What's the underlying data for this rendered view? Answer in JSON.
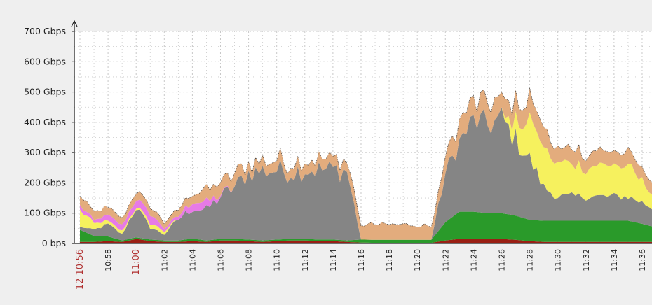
{
  "colors": {
    "background": "#efefef",
    "plot_background": "#ffffff",
    "grid": "#c8c8c8",
    "axis": "#222222",
    "gray": "#858585",
    "green": "#2a9a2a",
    "tan": "#e3ac7d",
    "yellow": "#f6f15e",
    "magenta": "#e77ae6",
    "darkred": "#9a1f14",
    "highlight_label": "#b03030"
  },
  "chart_data": {
    "type": "area",
    "stacked": true,
    "title": "",
    "xlabel": "",
    "ylabel": "",
    "ylim": [
      0,
      700
    ],
    "y_unit": "Gbps",
    "y_ticks": [
      {
        "value": 0,
        "label": "0 bps"
      },
      {
        "value": 100,
        "label": "100 Gbps"
      },
      {
        "value": 200,
        "label": "200 Gbps"
      },
      {
        "value": 300,
        "label": "300 Gbps"
      },
      {
        "value": 400,
        "label": "400 Gbps"
      },
      {
        "value": 500,
        "label": "500 Gbps"
      },
      {
        "value": 600,
        "label": "600 Gbps"
      },
      {
        "value": 700,
        "label": "700 Gbps"
      }
    ],
    "x_ticks": [
      {
        "minute": 0,
        "label": "12 10:56",
        "highlight": true
      },
      {
        "minute": 2,
        "label": "10:58",
        "highlight": false
      },
      {
        "minute": 4,
        "label": "11:00",
        "highlight": true
      },
      {
        "minute": 6,
        "label": "11:02",
        "highlight": false
      },
      {
        "minute": 8,
        "label": "11:04",
        "highlight": false
      },
      {
        "minute": 10,
        "label": "11:06",
        "highlight": false
      },
      {
        "minute": 12,
        "label": "11:08",
        "highlight": false
      },
      {
        "minute": 14,
        "label": "11:10",
        "highlight": false
      },
      {
        "minute": 16,
        "label": "11:12",
        "highlight": false
      },
      {
        "minute": 18,
        "label": "11:14",
        "highlight": false
      },
      {
        "minute": 20,
        "label": "11:16",
        "highlight": false
      },
      {
        "minute": 22,
        "label": "11:18",
        "highlight": false
      },
      {
        "minute": 24,
        "label": "11:20",
        "highlight": false
      },
      {
        "minute": 26,
        "label": "11:22",
        "highlight": false
      },
      {
        "minute": 28,
        "label": "11:24",
        "highlight": false
      },
      {
        "minute": 30,
        "label": "11:26",
        "highlight": false
      },
      {
        "minute": 32,
        "label": "11:28",
        "highlight": false
      },
      {
        "minute": 34,
        "label": "11:30",
        "highlight": false
      },
      {
        "minute": 36,
        "label": "11:32",
        "highlight": false
      },
      {
        "minute": 38,
        "label": "11:34",
        "highlight": false
      },
      {
        "minute": 40,
        "label": "11:36",
        "highlight": false
      }
    ],
    "x_minute_range": [
      0,
      40.8
    ],
    "grid": true,
    "series": [
      {
        "color_key": "darkred",
        "x": [
          0,
          1,
          2,
          3,
          4,
          5,
          6,
          7,
          8,
          9,
          10,
          11,
          12,
          13,
          14,
          15,
          16,
          17,
          18,
          19,
          20,
          21,
          22,
          23,
          24,
          25,
          26,
          27,
          28,
          29,
          30,
          31,
          32,
          33,
          34,
          35,
          36,
          37,
          38,
          39,
          40,
          40.8
        ],
        "values": [
          5,
          5,
          8,
          5,
          15,
          8,
          5,
          5,
          8,
          5,
          10,
          10,
          8,
          5,
          8,
          10,
          10,
          8,
          8,
          5,
          3,
          2,
          2,
          2,
          2,
          2,
          10,
          15,
          15,
          15,
          15,
          12,
          8,
          5,
          5,
          5,
          5,
          5,
          5,
          5,
          5,
          5
        ]
      },
      {
        "color_key": "green",
        "x": [
          0,
          1,
          2,
          3,
          4,
          5,
          6,
          7,
          8,
          9,
          10,
          11,
          12,
          13,
          14,
          15,
          16,
          17,
          18,
          19,
          20,
          21,
          22,
          23,
          24,
          25,
          26,
          27,
          28,
          29,
          30,
          31,
          32,
          33,
          34,
          35,
          36,
          37,
          38,
          39,
          40,
          40.8
        ],
        "values": [
          40,
          20,
          15,
          5,
          5,
          5,
          5,
          5,
          8,
          5,
          5,
          5,
          5,
          5,
          5,
          5,
          5,
          5,
          5,
          5,
          10,
          10,
          10,
          10,
          10,
          10,
          60,
          90,
          90,
          85,
          85,
          80,
          70,
          70,
          70,
          70,
          70,
          70,
          70,
          70,
          60,
          50
        ]
      },
      {
        "color_key": "gray",
        "x": [
          0,
          1,
          2,
          3,
          4,
          5,
          6,
          7,
          8,
          9,
          10,
          11,
          12,
          13,
          14,
          15,
          16,
          17,
          18,
          19,
          20,
          21,
          22,
          23,
          24,
          25,
          26,
          27,
          28,
          29,
          30,
          31,
          32,
          33,
          34,
          35,
          36,
          37,
          38,
          39,
          40,
          40.8
        ],
        "values": [
          10,
          20,
          40,
          20,
          100,
          40,
          20,
          70,
          100,
          100,
          140,
          170,
          220,
          230,
          230,
          220,
          230,
          230,
          230,
          230,
          0,
          0,
          0,
          0,
          0,
          0,
          160,
          230,
          300,
          290,
          310,
          250,
          200,
          110,
          80,
          80,
          80,
          80,
          80,
          80,
          70,
          60
        ]
      },
      {
        "color_key": "yellow",
        "x": [
          0,
          1,
          2,
          3,
          4,
          5,
          6,
          7,
          8,
          9,
          10,
          11,
          12,
          13,
          14,
          15,
          16,
          17,
          18,
          19,
          20,
          21,
          22,
          23,
          24,
          25,
          26,
          27,
          28,
          29,
          30,
          31,
          32,
          33,
          34,
          35,
          36,
          37,
          38,
          39,
          40,
          40.8
        ],
        "values": [
          60,
          20,
          10,
          10,
          5,
          15,
          10,
          0,
          0,
          0,
          0,
          0,
          0,
          0,
          0,
          0,
          0,
          0,
          0,
          0,
          0,
          0,
          0,
          0,
          0,
          0,
          0,
          0,
          0,
          0,
          0,
          60,
          130,
          130,
          110,
          100,
          100,
          100,
          100,
          100,
          70,
          50
        ]
      },
      {
        "color_key": "magenta",
        "x": [
          0,
          1,
          2,
          3,
          4,
          5,
          6,
          7,
          8,
          9,
          10,
          11,
          12,
          13,
          14,
          15,
          16,
          17,
          18,
          19,
          20,
          21,
          22,
          23,
          24,
          25,
          26,
          27,
          28,
          29,
          30,
          31,
          32,
          33,
          34,
          35,
          36,
          37,
          38,
          39,
          40,
          40.8
        ],
        "values": [
          15,
          10,
          20,
          20,
          25,
          30,
          10,
          10,
          25,
          25,
          5,
          0,
          0,
          0,
          0,
          0,
          0,
          0,
          0,
          0,
          0,
          0,
          0,
          0,
          0,
          0,
          0,
          0,
          0,
          0,
          0,
          0,
          0,
          0,
          0,
          0,
          0,
          0,
          0,
          0,
          0,
          0
        ]
      },
      {
        "color_key": "tan",
        "x": [
          0,
          1,
          2,
          3,
          4,
          5,
          6,
          7,
          8,
          9,
          10,
          11,
          12,
          13,
          14,
          15,
          16,
          17,
          18,
          19,
          20,
          21,
          22,
          23,
          24,
          25,
          26,
          27,
          28,
          29,
          30,
          31,
          32,
          33,
          34,
          35,
          36,
          37,
          38,
          39,
          40,
          40.8
        ],
        "values": [
          30,
          30,
          25,
          20,
          25,
          25,
          20,
          20,
          30,
          40,
          40,
          40,
          35,
          35,
          35,
          35,
          35,
          35,
          35,
          35,
          50,
          50,
          50,
          50,
          50,
          45,
          50,
          60,
          60,
          70,
          60,
          60,
          70,
          60,
          50,
          50,
          50,
          50,
          50,
          50,
          40,
          40
        ]
      }
    ]
  }
}
